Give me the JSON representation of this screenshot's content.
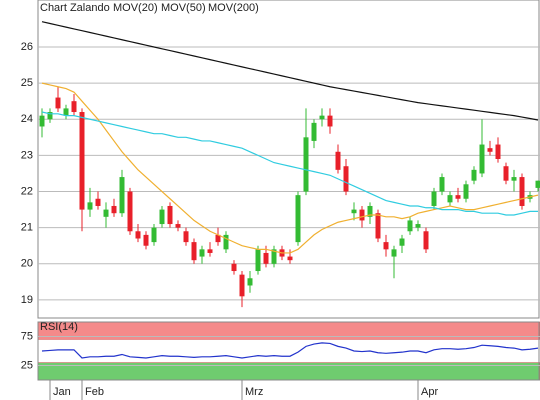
{
  "chart_data": [
    {
      "type": "candlestick",
      "title": "Chart Zalando",
      "title_color": "#e0502a",
      "categories": [
        null,
        "Jan",
        null,
        null,
        null,
        "Feb",
        null,
        null,
        null,
        null,
        null,
        null,
        null,
        null,
        null,
        null,
        null,
        null,
        null,
        null,
        null,
        null,
        null,
        null,
        null,
        "Mrz",
        null,
        null,
        null,
        null,
        null,
        null,
        null,
        null,
        null,
        null,
        null,
        null,
        null,
        null,
        null,
        null,
        null,
        null,
        null,
        null,
        null,
        "Apr",
        null,
        null,
        null,
        null,
        null,
        null,
        null,
        null,
        null,
        null,
        null,
        null,
        null,
        null,
        null
      ],
      "open": [
        23.8,
        24.0,
        24.6,
        24.1,
        24.5,
        24.2,
        21.5,
        21.8,
        21.3,
        21.6,
        21.4,
        22.0,
        20.9,
        20.8,
        20.6,
        21.1,
        21.6,
        21.1,
        20.9,
        20.6,
        20.2,
        20.4,
        20.8,
        20.4,
        20.0,
        19.7,
        19.4,
        19.8,
        20.3,
        20.0,
        20.4,
        20.2,
        20.6,
        22.0,
        23.4,
        24.0,
        24.1,
        23.1,
        22.7,
        21.4,
        21.5,
        21.3,
        21.4,
        20.6,
        20.2,
        20.5,
        20.9,
        21.0,
        20.9,
        21.6,
        22.0,
        21.7,
        21.9,
        21.8,
        22.3,
        22.5,
        23.2,
        23.3,
        22.7,
        22.3,
        22.4,
        21.8,
        22.1
      ],
      "high": [
        24.3,
        24.3,
        24.9,
        24.4,
        24.7,
        24.3,
        22.1,
        22.0,
        21.7,
        21.8,
        22.6,
        22.1,
        21.1,
        20.9,
        21.1,
        21.6,
        21.7,
        21.2,
        21.0,
        20.7,
        20.5,
        20.6,
        21.0,
        20.9,
        20.1,
        19.8,
        19.8,
        20.5,
        20.5,
        20.5,
        20.5,
        20.4,
        22.0,
        24.3,
        24.0,
        24.3,
        24.3,
        23.3,
        22.9,
        21.7,
        21.6,
        21.7,
        21.5,
        20.8,
        20.5,
        20.8,
        21.3,
        21.2,
        21.0,
        22.1,
        22.5,
        22.0,
        22.1,
        22.3,
        22.7,
        24.0,
        23.4,
        23.5,
        22.8,
        22.6,
        22.5,
        22.0,
        22.3
      ],
      "low": [
        23.5,
        23.9,
        24.2,
        24.0,
        24.1,
        20.9,
        21.3,
        21.5,
        21.0,
        21.3,
        21.3,
        20.8,
        20.6,
        20.4,
        20.5,
        21.0,
        21.0,
        20.9,
        20.5,
        20.0,
        20.0,
        20.2,
        20.5,
        20.3,
        19.7,
        18.8,
        19.2,
        19.7,
        19.9,
        19.9,
        20.1,
        20.0,
        20.5,
        21.9,
        23.2,
        23.8,
        23.6,
        22.5,
        21.9,
        21.2,
        21.0,
        21.1,
        20.6,
        20.2,
        19.6,
        20.3,
        20.8,
        20.9,
        20.3,
        21.5,
        21.9,
        21.6,
        21.7,
        21.7,
        22.2,
        22.4,
        23.0,
        22.8,
        22.2,
        22.0,
        21.5,
        21.7,
        22.0
      ],
      "close": [
        24.1,
        24.2,
        24.3,
        24.3,
        24.2,
        21.5,
        21.7,
        21.6,
        21.5,
        21.4,
        22.4,
        20.9,
        20.7,
        20.5,
        21.0,
        21.5,
        21.1,
        21.0,
        20.6,
        20.1,
        20.4,
        20.3,
        20.6,
        20.8,
        19.8,
        19.1,
        19.6,
        20.4,
        20.0,
        20.4,
        20.2,
        20.1,
        21.9,
        23.5,
        23.9,
        24.1,
        23.8,
        22.6,
        22.0,
        21.5,
        21.2,
        21.6,
        20.7,
        20.4,
        20.4,
        20.7,
        21.2,
        21.1,
        20.4,
        22.0,
        22.4,
        21.9,
        21.8,
        22.2,
        22.6,
        23.3,
        23.1,
        22.9,
        22.3,
        22.4,
        21.6,
        21.9,
        22.3
      ],
      "up_color": "#33bb33",
      "down_color": "#e8202a",
      "series": [
        {
          "name": "MOV(20)",
          "color": "#f0b030",
          "values": [
            25.0,
            24.95,
            24.9,
            24.85,
            24.75,
            24.5,
            24.25,
            24.0,
            23.7,
            23.4,
            23.1,
            22.85,
            22.6,
            22.4,
            22.2,
            22.0,
            21.8,
            21.6,
            21.4,
            21.2,
            21.05,
            20.9,
            20.8,
            20.7,
            20.6,
            20.5,
            20.45,
            20.4,
            20.4,
            20.35,
            20.3,
            20.3,
            20.4,
            20.6,
            20.8,
            20.95,
            21.05,
            21.15,
            21.2,
            21.25,
            21.3,
            21.35,
            21.35,
            21.3,
            21.3,
            21.25,
            21.3,
            21.4,
            21.45,
            21.5,
            21.55,
            21.6,
            21.55,
            21.5,
            21.5,
            21.55,
            21.6,
            21.65,
            21.7,
            21.75,
            21.8,
            21.85,
            21.9
          ]
        },
        {
          "name": "MOV(50)",
          "color": "#30cce0",
          "values": [
            24.2,
            24.15,
            24.15,
            24.1,
            24.1,
            24.05,
            24.0,
            23.95,
            23.9,
            23.85,
            23.8,
            23.75,
            23.7,
            23.65,
            23.6,
            23.6,
            23.55,
            23.5,
            23.5,
            23.45,
            23.4,
            23.4,
            23.35,
            23.3,
            23.25,
            23.2,
            23.1,
            23.0,
            22.9,
            22.8,
            22.75,
            22.7,
            22.65,
            22.6,
            22.55,
            22.5,
            22.45,
            22.35,
            22.25,
            22.15,
            22.05,
            21.95,
            21.85,
            21.75,
            21.7,
            21.65,
            21.6,
            21.6,
            21.55,
            21.55,
            21.5,
            21.5,
            21.5,
            21.45,
            21.45,
            21.4,
            21.4,
            21.4,
            21.35,
            21.35,
            21.4,
            21.45,
            21.45
          ]
        },
        {
          "name": "MOV(200)",
          "color": "#111111",
          "values": [
            26.7,
            26.65,
            26.6,
            26.55,
            26.5,
            26.45,
            26.4,
            26.35,
            26.3,
            26.25,
            26.2,
            26.15,
            26.1,
            26.05,
            26.0,
            25.95,
            25.9,
            25.85,
            25.8,
            25.75,
            25.7,
            25.65,
            25.6,
            25.55,
            25.5,
            25.45,
            25.4,
            25.35,
            25.3,
            25.25,
            25.2,
            25.15,
            25.1,
            25.05,
            25.0,
            24.95,
            24.9,
            24.86,
            24.82,
            24.78,
            24.74,
            24.7,
            24.66,
            24.62,
            24.58,
            24.54,
            24.5,
            24.46,
            24.43,
            24.4,
            24.37,
            24.34,
            24.31,
            24.28,
            24.25,
            24.22,
            24.19,
            24.16,
            24.13,
            24.1,
            24.06,
            24.02,
            23.98
          ]
        }
      ],
      "ylim": [
        18.5,
        27.3
      ],
      "yticks": [
        19,
        20,
        21,
        22,
        23,
        24,
        25,
        26
      ],
      "grid": true
    },
    {
      "type": "line",
      "title": "RSI(14)",
      "series": [
        {
          "name": "RSI(14)",
          "color": "#2233cc",
          "values": [
            50,
            51,
            52,
            52,
            52,
            38,
            40,
            40,
            41,
            41,
            44,
            40,
            39,
            38,
            40,
            42,
            41,
            41,
            40,
            39,
            40,
            40,
            41,
            42,
            40,
            38,
            40,
            42,
            41,
            42,
            41,
            41,
            48,
            58,
            62,
            64,
            63,
            58,
            55,
            50,
            49,
            50,
            47,
            46,
            47,
            48,
            50,
            50,
            47,
            52,
            54,
            54,
            53,
            54,
            56,
            60,
            59,
            58,
            56,
            55,
            52,
            53,
            55
          ]
        }
      ],
      "bands": [
        {
          "from": 70,
          "to": 100,
          "color": "#f48a8a"
        },
        {
          "from": 0,
          "to": 30,
          "color": "#6fcc6f"
        }
      ],
      "ylim": [
        0,
        100
      ],
      "yticks": [
        25,
        75
      ],
      "grid": true
    }
  ]
}
